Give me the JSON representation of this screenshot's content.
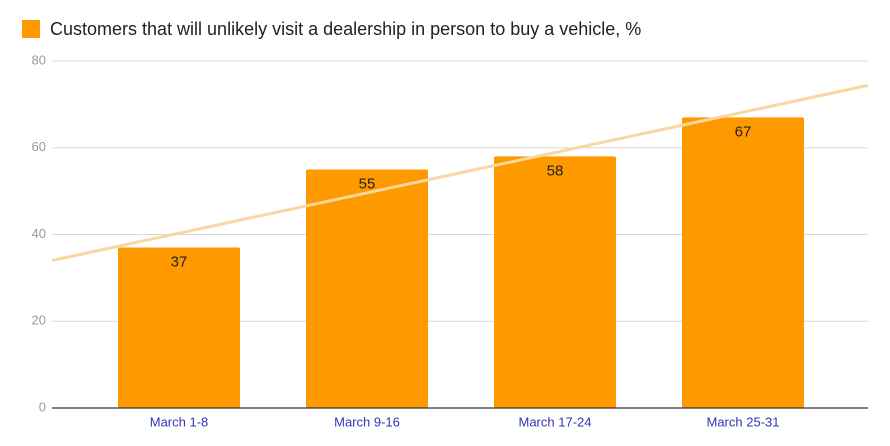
{
  "chart_data": {
    "type": "bar",
    "categories": [
      "March 1-8",
      "March 9-16",
      "March 17-24",
      "March 25-31"
    ],
    "series": [
      {
        "name": "Customers that will unlikely visit a dealership in person to buy a vehicle, %",
        "color": "#ff9900",
        "values": [
          37,
          55,
          58,
          67
        ]
      }
    ],
    "ylim": [
      0,
      80
    ],
    "yticks": [
      0,
      20,
      40,
      60,
      80
    ],
    "grid": true,
    "legend": "top-left",
    "trendline": true,
    "trendline_color": "#f9d79f",
    "data_labels": true
  }
}
